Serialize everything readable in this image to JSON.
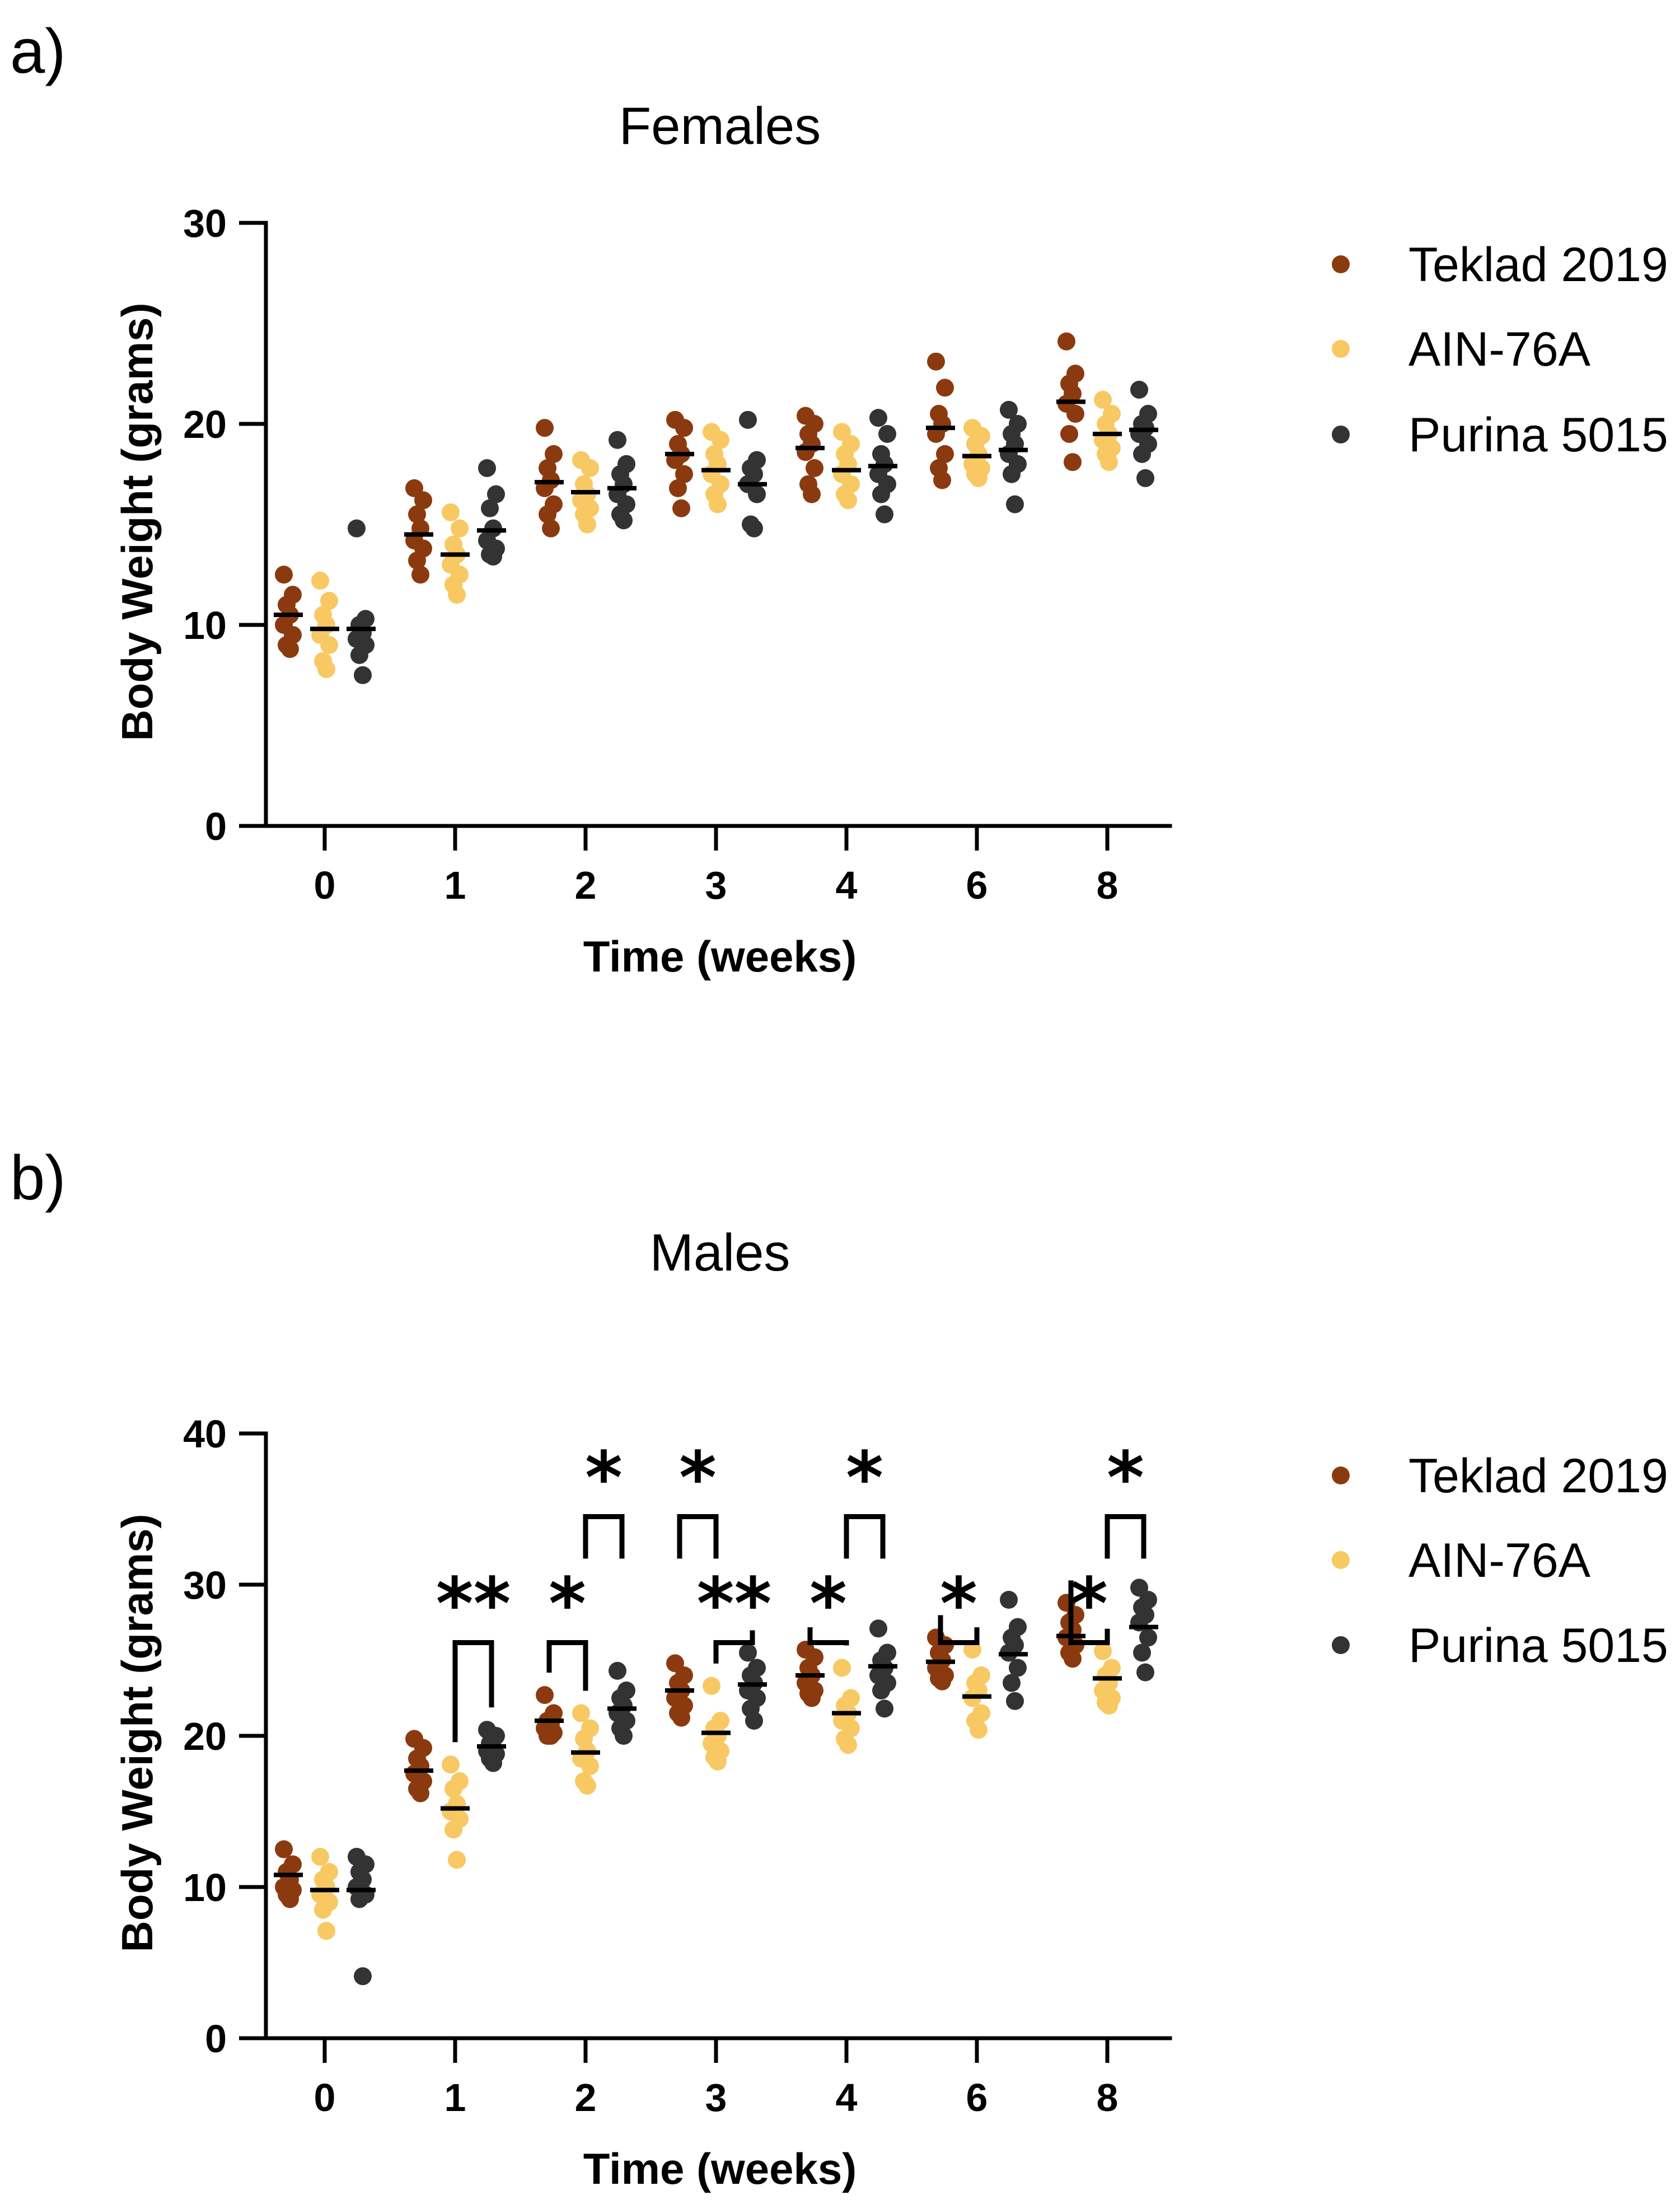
{
  "chart_data": [
    {
      "type": "scatter",
      "panel_label": "a)",
      "title": "Females",
      "xlabel": "Time (weeks)",
      "ylabel": "Body Weight (grams)",
      "categories": [
        "0",
        "1",
        "2",
        "3",
        "4",
        "6",
        "8"
      ],
      "ylim": [
        0,
        30
      ],
      "yticks": [
        "0",
        "10",
        "20",
        "30"
      ],
      "grid": false,
      "legend_position": "right",
      "series": [
        {
          "name": "Teklad 2019",
          "color": "#8B3A0F",
          "means": [
            10.5,
            14.5,
            17.1,
            18.5,
            18.8,
            19.8,
            21.1
          ],
          "points": [
            [
              12.5,
              11.5,
              11.0,
              10.5,
              10.0,
              9.5,
              9.0,
              8.8
            ],
            [
              16.8,
              16.2,
              15.5,
              14.8,
              14.2,
              13.8,
              13.2,
              12.5
            ],
            [
              19.8,
              18.5,
              17.8,
              17.2,
              16.8,
              16.0,
              15.5,
              14.8
            ],
            [
              20.2,
              19.8,
              19.0,
              18.5,
              18.2,
              17.5,
              16.8,
              15.8
            ],
            [
              20.4,
              20.0,
              19.5,
              19.0,
              18.6,
              17.8,
              17.0,
              16.5
            ],
            [
              23.1,
              21.8,
              20.5,
              20.0,
              19.5,
              18.5,
              17.8,
              17.2
            ],
            [
              24.1,
              22.5,
              22.0,
              21.5,
              21.0,
              20.5,
              19.5,
              18.1
            ]
          ]
        },
        {
          "name": "AIN-76A",
          "color": "#F8C863",
          "means": [
            9.8,
            13.5,
            16.6,
            17.7,
            17.7,
            18.4,
            19.5
          ],
          "points": [
            [
              12.2,
              11.2,
              10.5,
              10.0,
              9.5,
              9.0,
              8.2,
              7.8
            ],
            [
              15.6,
              14.8,
              14.0,
              13.5,
              13.0,
              12.5,
              12.0,
              11.5
            ],
            [
              18.2,
              17.8,
              17.0,
              16.5,
              16.2,
              15.8,
              15.5,
              15.0
            ],
            [
              19.6,
              19.2,
              18.5,
              18.0,
              17.5,
              17.0,
              16.5,
              16.0
            ],
            [
              19.6,
              19.0,
              18.5,
              18.0,
              17.5,
              17.0,
              16.5,
              16.2
            ],
            [
              19.8,
              19.4,
              19.0,
              18.5,
              18.0,
              17.8,
              17.5,
              17.3
            ],
            [
              21.2,
              20.5,
              20.0,
              19.5,
              19.2,
              18.8,
              18.5,
              18.1
            ]
          ]
        },
        {
          "name": "Purina 5015",
          "color": "#333333",
          "means": [
            9.8,
            14.7,
            16.8,
            17.0,
            17.9,
            18.7,
            19.7
          ],
          "points": [
            [
              14.8,
              10.3,
              10.0,
              9.6,
              9.3,
              9.0,
              8.5,
              7.5
            ],
            [
              17.8,
              16.5,
              15.8,
              14.8,
              14.2,
              13.8,
              13.5,
              13.4
            ],
            [
              19.2,
              18.0,
              17.5,
              17.0,
              16.5,
              16.0,
              15.5,
              15.2
            ],
            [
              20.2,
              18.2,
              17.8,
              17.5,
              17.0,
              16.5,
              15.0,
              14.8
            ],
            [
              20.3,
              19.5,
              18.5,
              18.0,
              17.5,
              17.0,
              16.5,
              15.5
            ],
            [
              20.7,
              20.0,
              19.5,
              19.0,
              18.5,
              18.0,
              17.5,
              16.0
            ],
            [
              21.7,
              20.5,
              20.0,
              19.8,
              19.5,
              19.0,
              18.5,
              17.3
            ]
          ]
        }
      ],
      "significance": []
    },
    {
      "type": "scatter",
      "panel_label": "b)",
      "title": "Males",
      "xlabel": "Time (weeks)",
      "ylabel": "Body Weight (grams)",
      "categories": [
        "0",
        "1",
        "2",
        "3",
        "4",
        "6",
        "8"
      ],
      "ylim": [
        0,
        40
      ],
      "yticks": [
        "0",
        "10",
        "20",
        "30",
        "40"
      ],
      "grid": false,
      "legend_position": "right",
      "series": [
        {
          "name": "Teklad 2019",
          "color": "#8B3A0F",
          "means": [
            10.8,
            17.7,
            21.0,
            23.0,
            24.0,
            24.9,
            26.6
          ],
          "points": [
            [
              12.5,
              11.5,
              11.0,
              10.5,
              10.0,
              9.8,
              9.5,
              9.2
            ],
            [
              19.8,
              19.2,
              18.5,
              18.0,
              17.5,
              17.0,
              16.5,
              16.2
            ],
            [
              22.7,
              21.5,
              21.0,
              20.8,
              20.5,
              20.2,
              20.0,
              20.0
            ],
            [
              24.8,
              24.0,
              23.5,
              23.0,
              22.5,
              22.0,
              21.5,
              21.2
            ],
            [
              25.7,
              25.2,
              24.5,
              24.0,
              23.5,
              23.0,
              22.8,
              22.5
            ],
            [
              26.5,
              26.0,
              25.5,
              25.0,
              24.5,
              24.0,
              23.8,
              23.6
            ],
            [
              28.8,
              28.0,
              27.5,
              27.0,
              26.5,
              26.0,
              25.5,
              25.1
            ]
          ]
        },
        {
          "name": "AIN-76A",
          "color": "#F8C863",
          "means": [
            9.8,
            15.2,
            18.9,
            20.2,
            21.5,
            22.6,
            23.8
          ],
          "points": [
            [
              12.0,
              11.0,
              10.5,
              10.0,
              9.5,
              9.0,
              8.5,
              7.1
            ],
            [
              18.1,
              17.0,
              16.5,
              15.5,
              15.0,
              14.5,
              13.8,
              11.8
            ],
            [
              21.5,
              20.5,
              19.8,
              19.0,
              18.5,
              18.0,
              17.0,
              16.7
            ],
            [
              23.3,
              21.0,
              20.5,
              20.0,
              19.5,
              19.0,
              18.6,
              18.3
            ],
            [
              24.5,
              22.5,
              22.0,
              21.5,
              21.0,
              20.5,
              19.8,
              19.4
            ],
            [
              25.7,
              24.0,
              23.5,
              23.0,
              22.5,
              21.5,
              21.0,
              20.4
            ],
            [
              25.6,
              24.5,
              24.0,
              23.5,
              23.0,
              22.5,
              22.2,
              22.0
            ]
          ]
        },
        {
          "name": "Purina 5015",
          "color": "#333333",
          "means": [
            9.8,
            19.3,
            21.8,
            23.4,
            24.6,
            25.4,
            27.2
          ],
          "points": [
            [
              12.0,
              11.5,
              11.0,
              10.5,
              10.0,
              9.5,
              9.2,
              4.1
            ],
            [
              20.4,
              20.0,
              19.5,
              19.2,
              19.0,
              18.8,
              18.5,
              18.2
            ],
            [
              24.3,
              23.0,
              22.5,
              22.0,
              21.5,
              21.0,
              20.5,
              20.0
            ],
            [
              25.5,
              24.5,
              24.0,
              23.5,
              23.0,
              22.5,
              21.8,
              21.0
            ],
            [
              27.1,
              25.5,
              25.0,
              24.5,
              24.0,
              23.5,
              23.0,
              21.8
            ],
            [
              29.0,
              27.2,
              26.5,
              26.0,
              25.5,
              24.5,
              23.5,
              22.3
            ],
            [
              29.8,
              29.0,
              28.5,
              28.0,
              27.5,
              26.5,
              25.5,
              24.2
            ]
          ]
        }
      ],
      "significance": [
        {
          "time": "1",
          "compare": [
            "AIN-76A",
            "Purina 5015"
          ],
          "label": "**",
          "level": "low"
        },
        {
          "time": "2",
          "compare": [
            "Teklad 2019",
            "AIN-76A"
          ],
          "label": "*",
          "level": "low"
        },
        {
          "time": "2",
          "compare": [
            "AIN-76A",
            "Purina 5015"
          ],
          "label": "*",
          "level": "high"
        },
        {
          "time": "3",
          "compare": [
            "Teklad 2019",
            "AIN-76A"
          ],
          "label": "*",
          "level": "high"
        },
        {
          "time": "3",
          "compare": [
            "AIN-76A",
            "Purina 5015"
          ],
          "label": "**",
          "level": "low"
        },
        {
          "time": "4",
          "compare": [
            "Teklad 2019",
            "AIN-76A"
          ],
          "label": "*",
          "level": "low"
        },
        {
          "time": "4",
          "compare": [
            "AIN-76A",
            "Purina 5015"
          ],
          "label": "*",
          "level": "high"
        },
        {
          "time": "6",
          "compare": [
            "Teklad 2019",
            "AIN-76A"
          ],
          "label": "*",
          "level": "low"
        },
        {
          "time": "8",
          "compare": [
            "Teklad 2019",
            "AIN-76A"
          ],
          "label": "*",
          "level": "low"
        },
        {
          "time": "8",
          "compare": [
            "AIN-76A",
            "Purina 5015"
          ],
          "label": "*",
          "level": "high"
        }
      ]
    }
  ]
}
